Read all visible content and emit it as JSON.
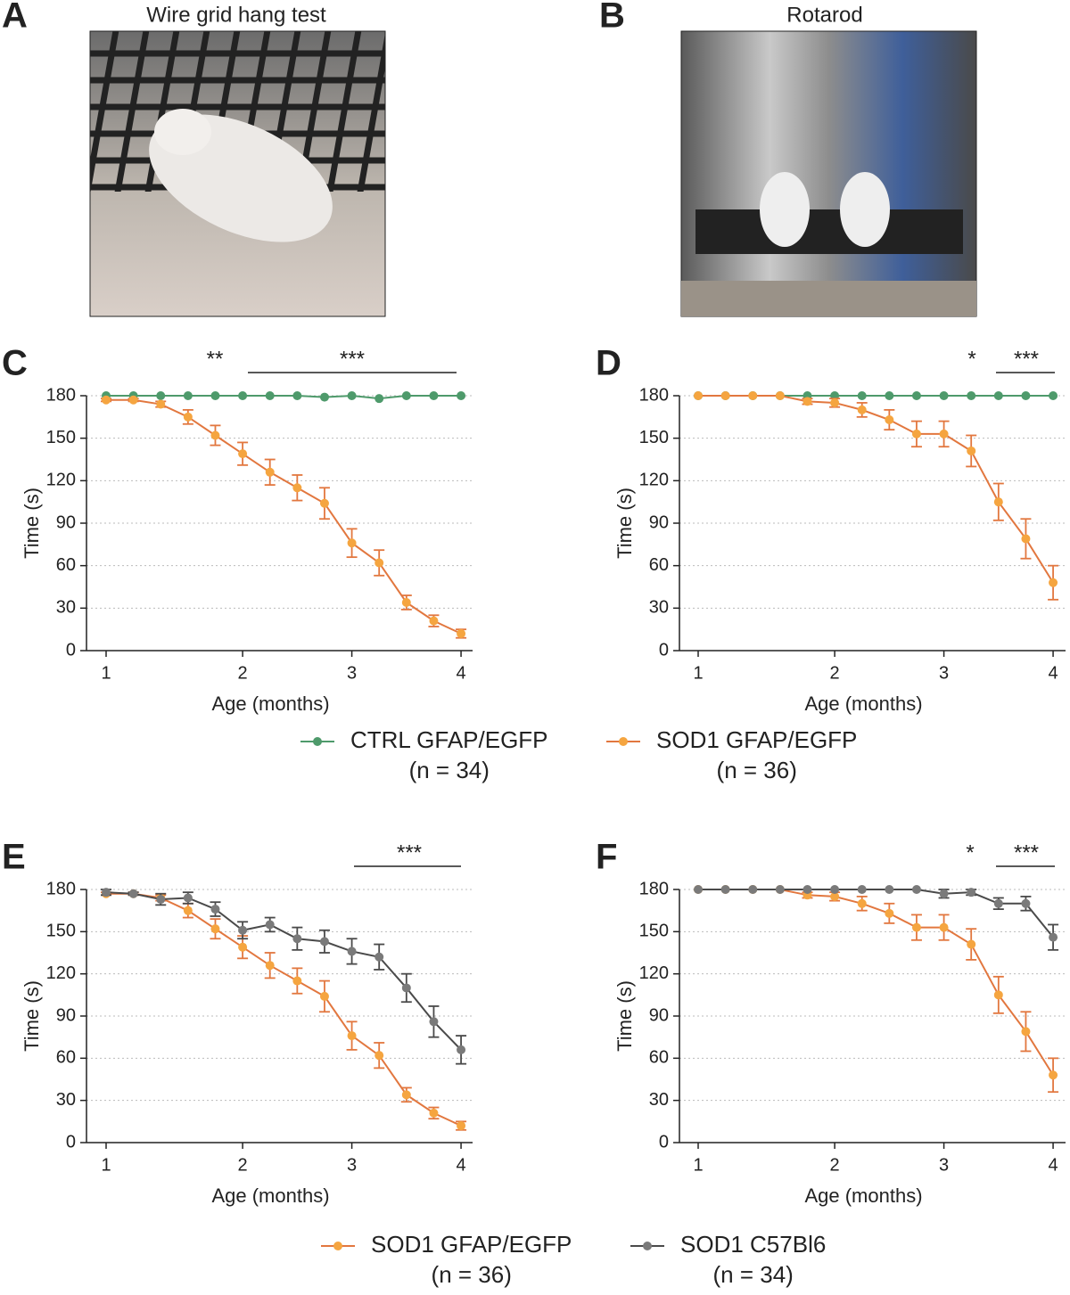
{
  "photos": [
    {
      "label": "A",
      "title": "Wire grid hang test"
    },
    {
      "label": "B",
      "title": "Rotarod"
    }
  ],
  "chart_data": [
    {
      "type": "line",
      "label": "C",
      "y_label": "Time (s)",
      "x_label": "Age (months)",
      "categories": [
        "1",
        null,
        null,
        null,
        null,
        "2",
        null,
        null,
        null,
        "3",
        null,
        null,
        null,
        "4"
      ],
      "ylim": [
        0,
        180
      ],
      "yticks": [
        0,
        30,
        60,
        90,
        120,
        150,
        180
      ],
      "grid": true,
      "annotations": [
        {
          "text": "**"
        },
        {
          "text": "***"
        }
      ],
      "series": [
        {
          "name": "CTRL GFAP/EGFP",
          "n_label": "(n = 34)",
          "color": "#4e9a6b",
          "line_color": "#4e9a6b",
          "values": [
            180,
            180,
            180,
            180,
            180,
            180,
            180,
            180,
            179,
            180,
            178,
            180,
            180,
            180
          ],
          "errors": [
            0,
            0,
            0,
            0,
            0,
            0,
            0,
            0,
            0,
            0,
            0,
            0,
            0,
            0
          ]
        },
        {
          "name": "SOD1 GFAP/EGFP",
          "n_label": "(n = 36)",
          "color": "#f5a540",
          "line_color": "#e2773f",
          "values": [
            177,
            177,
            174,
            165,
            152,
            139,
            126,
            115,
            104,
            76,
            62,
            34,
            21,
            12
          ],
          "errors": [
            1,
            1,
            2,
            5,
            7,
            8,
            9,
            9,
            11,
            10,
            9,
            5,
            4,
            3
          ]
        }
      ]
    },
    {
      "type": "line",
      "label": "D",
      "y_label": "Time (s)",
      "x_label": "Age (months)",
      "categories": [
        "1",
        null,
        null,
        null,
        null,
        "2",
        null,
        null,
        null,
        "3",
        null,
        null,
        null,
        "4"
      ],
      "ylim": [
        0,
        180
      ],
      "yticks": [
        0,
        30,
        60,
        90,
        120,
        150,
        180
      ],
      "grid": true,
      "annotations": [
        {
          "text": "*"
        },
        {
          "text": "***"
        }
      ],
      "series": [
        {
          "name": "CTRL GFAP/EGFP",
          "color": "#4e9a6b",
          "line_color": "#4e9a6b",
          "values": [
            180,
            180,
            180,
            180,
            180,
            180,
            180,
            180,
            180,
            180,
            180,
            180,
            180,
            180
          ],
          "errors": [
            0,
            0,
            0,
            0,
            0,
            0,
            0,
            0,
            0,
            0,
            0,
            0,
            0,
            0
          ]
        },
        {
          "name": "SOD1 GFAP/EGFP",
          "color": "#f5a540",
          "line_color": "#e2773f",
          "values": [
            180,
            180,
            180,
            180,
            176,
            175,
            170,
            163,
            153,
            153,
            141,
            105,
            79,
            48
          ],
          "errors": [
            0,
            0,
            0,
            0,
            2,
            3,
            5,
            7,
            9,
            9,
            11,
            13,
            14,
            12
          ]
        }
      ]
    },
    {
      "type": "line",
      "label": "E",
      "y_label": "Time (s)",
      "x_label": "Age (months)",
      "categories": [
        "1",
        null,
        null,
        null,
        null,
        "2",
        null,
        null,
        null,
        "3",
        null,
        null,
        null,
        "4"
      ],
      "ylim": [
        0,
        180
      ],
      "yticks": [
        0,
        30,
        60,
        90,
        120,
        150,
        180
      ],
      "grid": true,
      "annotations": [
        {
          "text": "***"
        }
      ],
      "series": [
        {
          "name": "SOD1 GFAP/EGFP",
          "n_label": "(n = 36)",
          "color": "#f5a540",
          "line_color": "#e2773f",
          "values": [
            177,
            177,
            174,
            165,
            152,
            139,
            126,
            115,
            104,
            76,
            62,
            34,
            21,
            12
          ],
          "errors": [
            1,
            1,
            2,
            5,
            7,
            8,
            9,
            9,
            11,
            10,
            9,
            5,
            4,
            3
          ]
        },
        {
          "name": "SOD1 C57Bl6",
          "n_label": "(n = 34)",
          "color": "#7a7a7a",
          "line_color": "#4a4a4a",
          "values": [
            178,
            177,
            173,
            174,
            166,
            151,
            155,
            145,
            143,
            136,
            132,
            110,
            86,
            66
          ],
          "errors": [
            2,
            1,
            4,
            4,
            5,
            6,
            5,
            8,
            8,
            9,
            9,
            10,
            11,
            10
          ]
        }
      ]
    },
    {
      "type": "line",
      "label": "F",
      "y_label": "Time (s)",
      "x_label": "Age (months)",
      "categories": [
        "1",
        null,
        null,
        null,
        null,
        "2",
        null,
        null,
        null,
        "3",
        null,
        null,
        null,
        "4"
      ],
      "ylim": [
        0,
        180
      ],
      "yticks": [
        0,
        30,
        60,
        90,
        120,
        150,
        180
      ],
      "grid": true,
      "annotations": [
        {
          "text": "*"
        },
        {
          "text": "***"
        }
      ],
      "series": [
        {
          "name": "SOD1 GFAP/EGFP",
          "color": "#f5a540",
          "line_color": "#e2773f",
          "values": [
            180,
            180,
            180,
            180,
            176,
            175,
            170,
            163,
            153,
            153,
            141,
            105,
            79,
            48
          ],
          "errors": [
            0,
            0,
            0,
            0,
            2,
            3,
            5,
            7,
            9,
            9,
            11,
            13,
            14,
            12
          ]
        },
        {
          "name": "SOD1 C57Bl6",
          "color": "#7a7a7a",
          "line_color": "#4a4a4a",
          "values": [
            180,
            180,
            180,
            180,
            180,
            180,
            180,
            180,
            180,
            177,
            178,
            170,
            170,
            146
          ],
          "errors": [
            0,
            0,
            0,
            0,
            0,
            0,
            0,
            0,
            0,
            3,
            2,
            4,
            5,
            9
          ]
        }
      ]
    }
  ]
}
